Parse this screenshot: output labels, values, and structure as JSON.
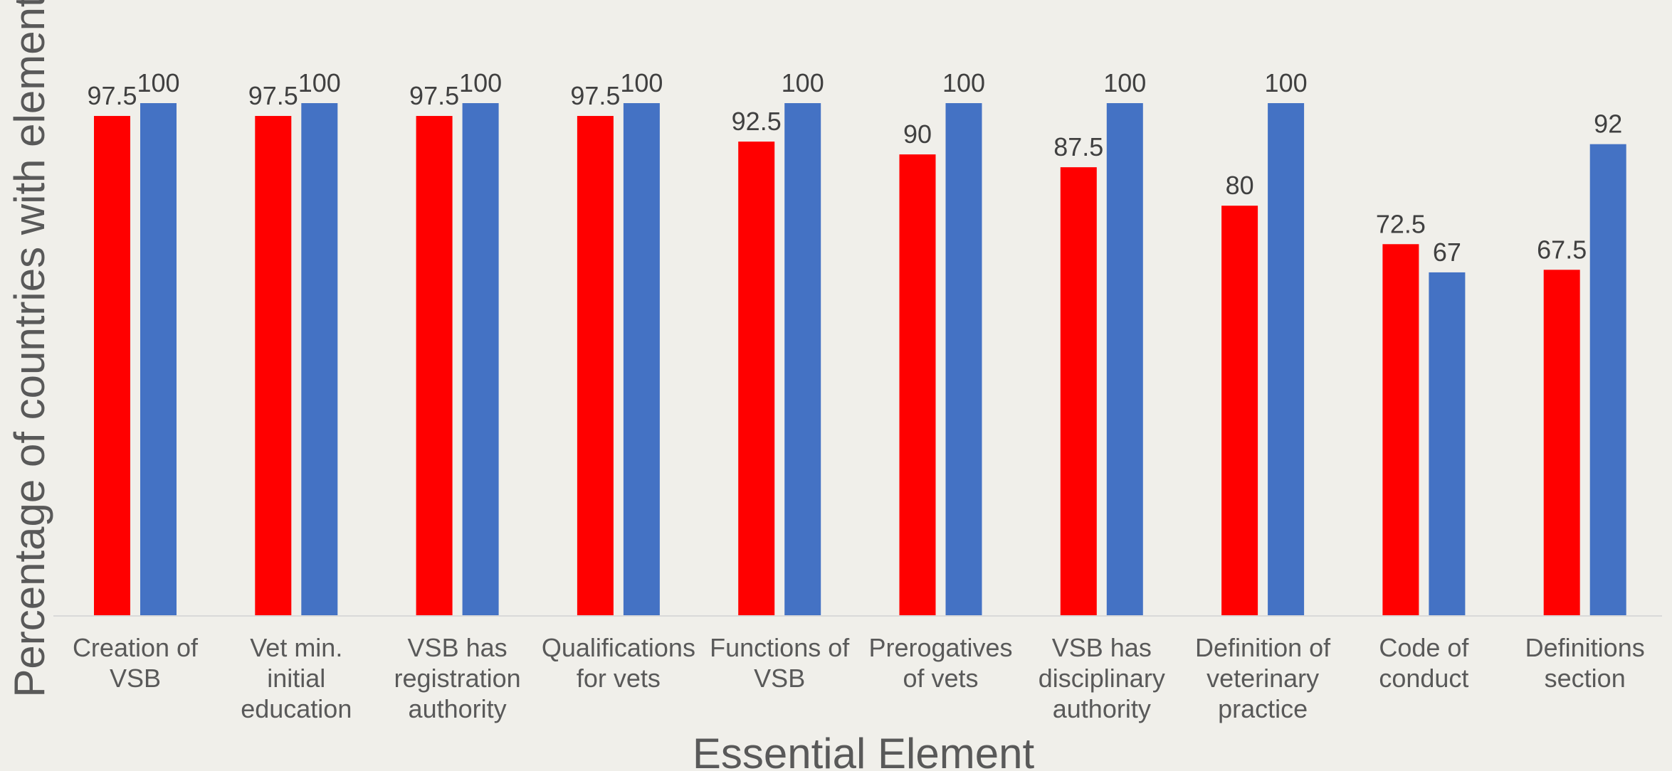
{
  "chart_data": {
    "type": "bar",
    "title": "",
    "xlabel": "Essential Element",
    "ylabel": "Percentage of countries with element",
    "ylim": [
      0,
      100
    ],
    "grid": false,
    "legend": "none",
    "categories": [
      [
        "Creation of",
        "VSB"
      ],
      [
        "Vet min.",
        "initial",
        "education"
      ],
      [
        "VSB has",
        "registration",
        "authority"
      ],
      [
        "Qualifications",
        "for vets"
      ],
      [
        "Functions of",
        "VSB"
      ],
      [
        "Prerogatives",
        "of vets"
      ],
      [
        "VSB has",
        "disciplinary",
        "authority"
      ],
      [
        "Definition of",
        "veterinary",
        "practice"
      ],
      [
        "Code of",
        "conduct"
      ],
      [
        "Definitions",
        "section"
      ]
    ],
    "series": [
      {
        "values": [
          97.5,
          97.5,
          97.5,
          97.5,
          92.5,
          90,
          87.5,
          80,
          72.5,
          67.5
        ],
        "color": "#ff0000"
      },
      {
        "values": [
          100,
          100,
          100,
          100,
          100,
          100,
          100,
          100,
          67,
          92
        ],
        "color": "#4472c4"
      }
    ]
  }
}
